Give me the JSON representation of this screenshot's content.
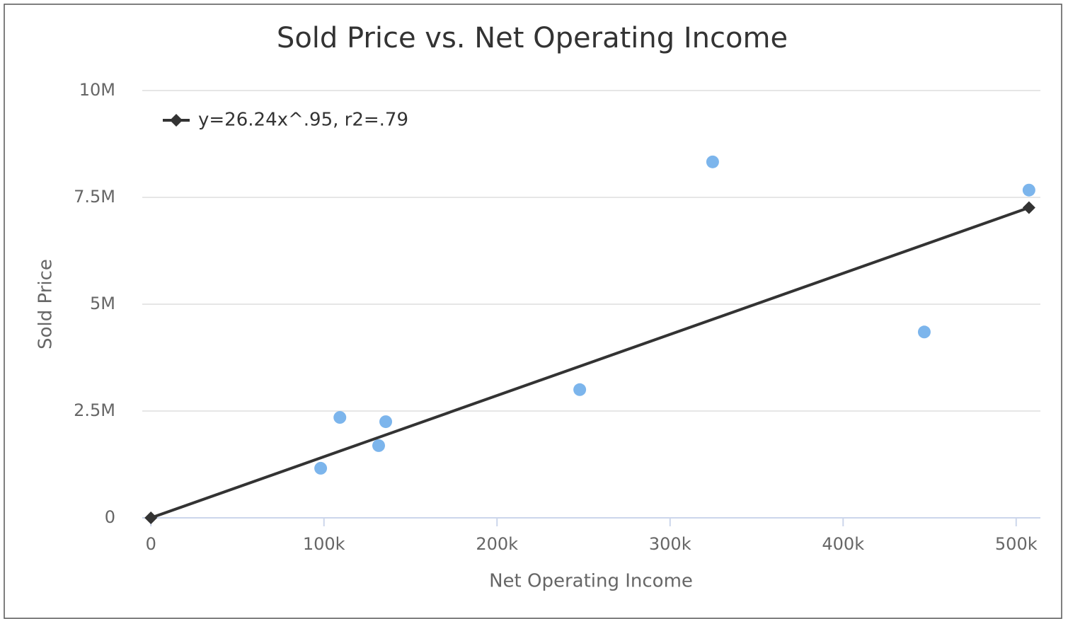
{
  "chart_data": {
    "type": "scatter",
    "title": "Sold Price vs. Net Operating Income",
    "x_label": "Net Operating Income",
    "y_label": "Sold Price",
    "series": [
      {
        "color": "#7cb5ec",
        "x": [
          98100,
          109200,
          131600,
          135700,
          247800,
          324600,
          446900,
          507400
        ],
        "values": [
          1160000,
          2350000,
          1690000,
          2250000,
          3000000,
          8330000,
          4350000,
          7670000
        ]
      },
      {
        "name": "y=26.24x^.95, r2=.79",
        "type": "line",
        "color": "#333333",
        "x": [
          0,
          507400
        ],
        "values": [
          0,
          7260000
        ]
      }
    ],
    "xlim": [
      -5000,
      514000
    ],
    "xticks": [
      0,
      {
        "value": 100000,
        "label": "100k"
      },
      {
        "value": 200000,
        "label": "200k"
      },
      {
        "value": 300000,
        "label": "300k"
      },
      {
        "value": 400000,
        "label": "400k"
      },
      {
        "value": 500000,
        "label": "500k"
      }
    ],
    "ylim": [
      0,
      10000000
    ],
    "yticks": [
      0,
      {
        "value": 2500000,
        "label": "2.5M"
      },
      {
        "value": 5000000,
        "label": "5M"
      },
      {
        "value": 7500000,
        "label": "7.5M"
      },
      {
        "value": 10000000,
        "label": "10M"
      }
    ],
    "grid": true,
    "legend": "top-left"
  }
}
